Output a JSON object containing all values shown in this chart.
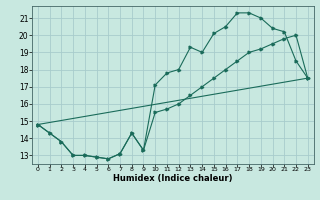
{
  "background_color": "#c8e8e0",
  "grid_color": "#a8cccc",
  "line_color": "#1a6b5a",
  "xlim": [
    -0.5,
    23.5
  ],
  "ylim": [
    12.5,
    21.7
  ],
  "yticks": [
    13,
    14,
    15,
    16,
    17,
    18,
    19,
    20,
    21
  ],
  "xticks": [
    0,
    1,
    2,
    3,
    4,
    5,
    6,
    7,
    8,
    9,
    10,
    11,
    12,
    13,
    14,
    15,
    16,
    17,
    18,
    19,
    20,
    21,
    22,
    23
  ],
  "xlabel": "Humidex (Indice chaleur)",
  "curve1_x": [
    0,
    1,
    2,
    3,
    4,
    5,
    6,
    7,
    8,
    9,
    10,
    11,
    12,
    13,
    14,
    15,
    16,
    17,
    18,
    19,
    20,
    21,
    22,
    23
  ],
  "curve1_y": [
    14.8,
    14.3,
    13.8,
    13.0,
    13.0,
    12.9,
    12.8,
    13.1,
    14.3,
    13.3,
    17.1,
    17.8,
    18.0,
    19.3,
    19.0,
    20.1,
    20.5,
    21.3,
    21.3,
    21.0,
    20.4,
    20.2,
    18.5,
    17.5
  ],
  "curve2_x": [
    0,
    1,
    2,
    3,
    4,
    5,
    6,
    7,
    8,
    9,
    10,
    11,
    12,
    13,
    14,
    15,
    16,
    17,
    18,
    19,
    20,
    21,
    22,
    23
  ],
  "curve2_y": [
    14.8,
    14.3,
    13.8,
    13.0,
    13.0,
    12.9,
    12.8,
    13.1,
    14.3,
    13.3,
    15.5,
    15.7,
    16.0,
    16.5,
    17.0,
    17.5,
    18.0,
    18.5,
    19.0,
    19.2,
    19.5,
    19.8,
    20.0,
    17.5
  ],
  "line_x": [
    0,
    23
  ],
  "line_y": [
    14.8,
    17.5
  ],
  "ytick_labels": [
    "13",
    "14",
    "15",
    "16",
    "17",
    "18",
    "19",
    "20",
    "21"
  ],
  "xtick_labels": [
    "0",
    "1",
    "2",
    "3",
    "4",
    "5",
    "6",
    "7",
    "8",
    "9",
    "10",
    "11",
    "12",
    "13",
    "14",
    "15",
    "16",
    "17",
    "18",
    "19",
    "20",
    "21",
    "22",
    "23"
  ]
}
